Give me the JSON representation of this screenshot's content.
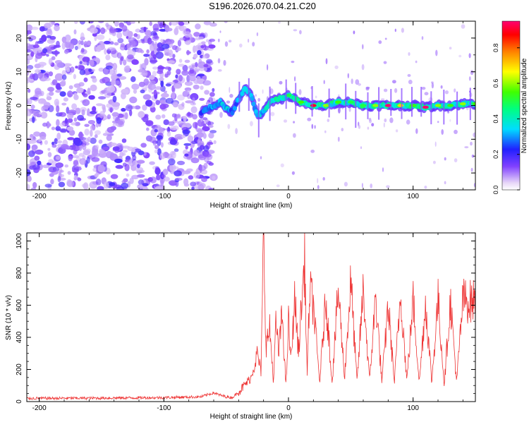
{
  "title": "S196.2026.070.04.21.C20",
  "chart_data": [
    {
      "type": "heatmap",
      "title": "",
      "xlabel": "Height of straight line (km)",
      "ylabel": "Frequency (Hz)",
      "xlim": [
        -210,
        150
      ],
      "ylim": [
        -25,
        25
      ],
      "x_ticks": [
        -200,
        -100,
        0,
        100
      ],
      "y_ticks": [
        -20,
        -10,
        0,
        10,
        20
      ],
      "colorbar": {
        "label": "Normalized spectral amplitude",
        "range": [
          0,
          0.95
        ],
        "ticks": [
          0.0,
          0.2,
          0.4,
          0.6,
          0.8
        ],
        "tick_labels": [
          "0.0",
          "0.2",
          "0.4",
          "0.6",
          "0.8"
        ]
      },
      "ridge_path": {
        "x": [
          -70,
          -65,
          -60,
          -55,
          -50,
          -45,
          -40,
          -35,
          -30,
          -25,
          -20,
          -15,
          -10,
          -5,
          0,
          10,
          20,
          30,
          40,
          50,
          60,
          70,
          80,
          90,
          100,
          110,
          120,
          130,
          140,
          150
        ],
        "freq": [
          -2,
          -1,
          0,
          1,
          -1,
          -2,
          2,
          5,
          3,
          -3,
          -2,
          1,
          2,
          2,
          3,
          1,
          0,
          0,
          1,
          1,
          0,
          0,
          0,
          0,
          0,
          -0.5,
          0,
          0,
          0.5,
          0.5
        ],
        "amplitude": [
          0.25,
          0.3,
          0.3,
          0.3,
          0.35,
          0.25,
          0.3,
          0.35,
          0.3,
          0.3,
          0.35,
          0.4,
          0.45,
          0.45,
          0.5,
          0.55,
          0.9,
          0.6,
          0.55,
          0.5,
          0.5,
          0.6,
          0.95,
          0.7,
          0.55,
          0.95,
          0.6,
          0.55,
          0.6,
          0.55
        ]
      }
    },
    {
      "type": "line",
      "title": "",
      "xlabel": "Height of straight line (km)",
      "ylabel": "SNR (10 * v/v)",
      "xlim": [
        -210,
        150
      ],
      "ylim": [
        0,
        1050
      ],
      "x_ticks": [
        -200,
        -100,
        0,
        100
      ],
      "y_ticks": [
        0,
        200,
        400,
        600,
        800,
        1000
      ],
      "series": [
        {
          "name": "SNR",
          "color": "#ee3333",
          "x": [
            -210,
            -150,
            -100,
            -70,
            -60,
            -55,
            -50,
            -45,
            -40,
            -30,
            -25,
            -22,
            -20,
            -18,
            -15,
            -12,
            -10,
            -8,
            -5,
            -2,
            0,
            2,
            5,
            8,
            10,
            13,
            15,
            17,
            20,
            25,
            30,
            35,
            40,
            45,
            50,
            55,
            60,
            65,
            70,
            75,
            80,
            85,
            90,
            95,
            100,
            105,
            110,
            115,
            120,
            125,
            130,
            135,
            140,
            145,
            150
          ],
          "y": [
            20,
            22,
            25,
            30,
            55,
            40,
            30,
            25,
            60,
            150,
            300,
            180,
            1050,
            350,
            450,
            120,
            500,
            300,
            550,
            80,
            500,
            250,
            650,
            300,
            550,
            880,
            150,
            700,
            600,
            120,
            650,
            120,
            700,
            150,
            750,
            120,
            700,
            130,
            650,
            120,
            600,
            120,
            680,
            130,
            640,
            120,
            620,
            120,
            640,
            110,
            630,
            120,
            640,
            620,
            630
          ]
        }
      ]
    }
  ]
}
